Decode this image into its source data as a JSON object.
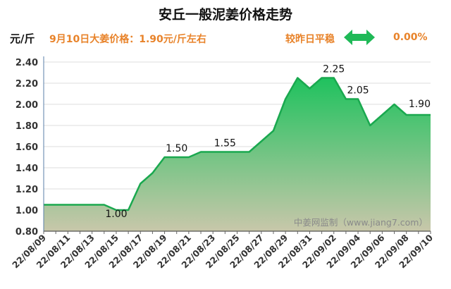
{
  "header": {
    "title": "安丘一般泥姜价格走势",
    "unit": "元/斤",
    "price_note": "9月10日大姜价格：1.90元/斤左右",
    "compare_label": "较昨日平稳",
    "change_pct": "0.00%",
    "arrow_icon": "double-arrow-icon",
    "accent_color": "#e8832a",
    "arrow_color": "#1fb957"
  },
  "chart_data": {
    "type": "area",
    "title": "安丘一般泥姜价格走势",
    "ylabel": "元/斤",
    "xlabel": "",
    "ylim": [
      0.8,
      2.4
    ],
    "yticks": [
      "0.80",
      "1.00",
      "1.20",
      "1.40",
      "1.60",
      "1.80",
      "2.00",
      "2.20",
      "2.40"
    ],
    "grid": true,
    "fill_color_top": "#1fc25e",
    "fill_color_bottom": "#c8c7aa",
    "line_color": "#1aa84f",
    "x": [
      "22/08/09",
      "22/08/10",
      "22/08/11",
      "22/08/12",
      "22/08/13",
      "22/08/14",
      "22/08/15",
      "22/08/16",
      "22/08/17",
      "22/08/18",
      "22/08/19",
      "22/08/20",
      "22/08/21",
      "22/08/22",
      "22/08/23",
      "22/08/24",
      "22/08/25",
      "22/08/26",
      "22/08/27",
      "22/08/28",
      "22/08/29",
      "22/08/30",
      "22/08/31",
      "22/09/01",
      "22/09/02",
      "22/09/03",
      "22/09/04",
      "22/09/05",
      "22/09/06",
      "22/09/07",
      "22/09/08",
      "22/09/09",
      "22/09/10"
    ],
    "x_tick_labels": [
      "22/08/09",
      "22/08/11",
      "22/08/13",
      "22/08/15",
      "22/08/17",
      "22/08/19",
      "22/08/21",
      "22/08/23",
      "22/08/25",
      "22/08/27",
      "22/08/29",
      "22/08/31",
      "22/09/02",
      "22/09/04",
      "22/09/06",
      "22/09/08",
      "22/09/10"
    ],
    "series": [
      {
        "values": [
          1.05,
          1.05,
          1.05,
          1.05,
          1.05,
          1.05,
          1.0,
          1.0,
          1.25,
          1.35,
          1.5,
          1.5,
          1.5,
          1.55,
          1.55,
          1.55,
          1.55,
          1.55,
          1.65,
          1.75,
          2.05,
          2.25,
          2.15,
          2.25,
          2.25,
          2.05,
          2.05,
          1.8,
          1.9,
          2.0,
          1.9,
          1.9,
          1.9
        ]
      }
    ],
    "data_labels": [
      {
        "index": 6,
        "text": "1.00"
      },
      {
        "index": 11,
        "text": "1.50"
      },
      {
        "index": 15,
        "text": "1.55"
      },
      {
        "index": 24,
        "text": "2.25"
      },
      {
        "index": 26,
        "text": "2.05"
      },
      {
        "index": 32,
        "text": "1.90"
      }
    ],
    "watermark": "中姜网监制（www.jiang7.com）"
  }
}
